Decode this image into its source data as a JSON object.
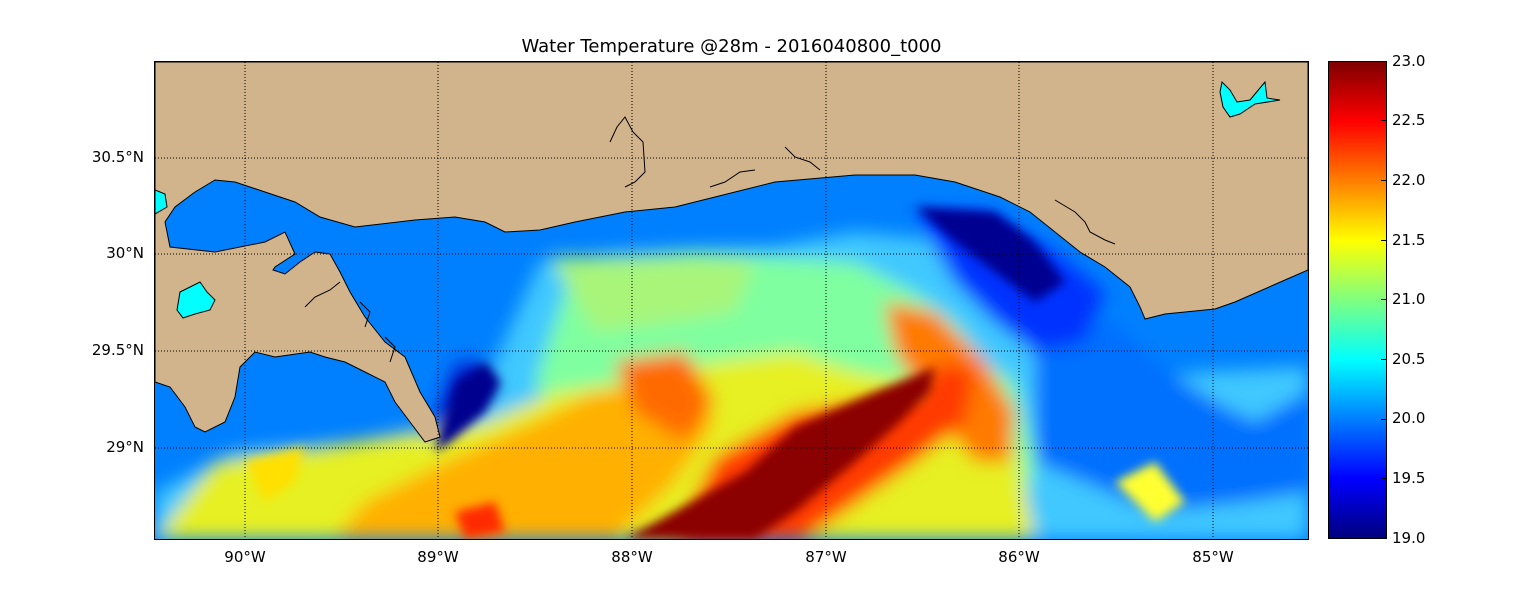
{
  "title": "Water Temperature @28m - 2016040800_t000",
  "y_axis": {
    "labels": [
      "30.5°N",
      "30°N",
      "29.5°N",
      "29°N"
    ]
  },
  "x_axis": {
    "labels": [
      "90°W",
      "89°W",
      "88°W",
      "87°W",
      "86°W",
      "85°W"
    ]
  },
  "colorbar": {
    "labels": [
      "23.0",
      "22.5",
      "22.0",
      "21.5",
      "21.0",
      "20.5",
      "20.0",
      "19.5",
      "19.0"
    ],
    "min": 19.0,
    "max": 23.0,
    "colors": [
      "#00007f",
      "#0000ff",
      "#007fff",
      "#00ffff",
      "#7fff7f",
      "#ffff00",
      "#ff7f00",
      "#ff0000",
      "#7f0000"
    ]
  },
  "map": {
    "land_color": "#d2b48c",
    "lake_color": "#00ffff",
    "gridlines": "dotted"
  }
}
